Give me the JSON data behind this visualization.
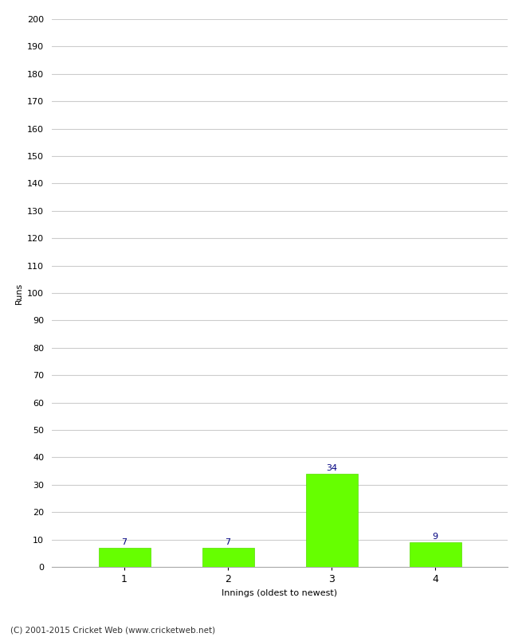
{
  "categories": [
    "1",
    "2",
    "3",
    "4"
  ],
  "values": [
    7,
    7,
    34,
    9
  ],
  "bar_color": "#66ff00",
  "bar_edge_color": "#55dd00",
  "value_label_color": "#000080",
  "xlabel": "Innings (oldest to newest)",
  "ylabel": "Runs",
  "ylim": [
    0,
    200
  ],
  "yticks": [
    0,
    10,
    20,
    30,
    40,
    50,
    60,
    70,
    80,
    90,
    100,
    110,
    120,
    130,
    140,
    150,
    160,
    170,
    180,
    190,
    200
  ],
  "grid_color": "#cccccc",
  "background_color": "#ffffff",
  "footer": "(C) 2001-2015 Cricket Web (www.cricketweb.net)",
  "bar_width": 0.5
}
